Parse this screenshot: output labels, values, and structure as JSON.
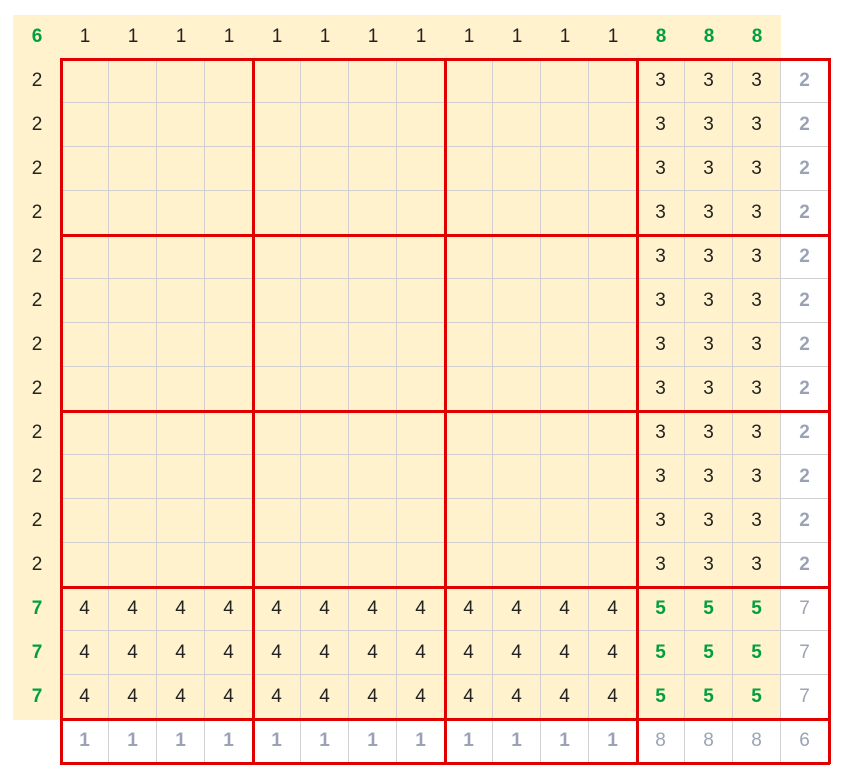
{
  "colors": {
    "cell_fill": "#fff2cc",
    "grid_line": "#d0d0d0",
    "block_border": "#e00000",
    "text_dark": "#222222",
    "text_green": "#00a040",
    "text_gray": "#9aa3b5"
  },
  "top_row": {
    "corner": "6",
    "cols": [
      "1",
      "1",
      "1",
      "1",
      "1",
      "1",
      "1",
      "1",
      "1",
      "1",
      "1",
      "1",
      "8",
      "8",
      "8"
    ]
  },
  "left_col": [
    "2",
    "2",
    "2",
    "2",
    "2",
    "2",
    "2",
    "2",
    "2",
    "2",
    "2",
    "2",
    "7",
    "7",
    "7"
  ],
  "grid": [
    [
      "",
      "",
      "",
      "",
      "",
      "",
      "",
      "",
      "",
      "",
      "",
      "",
      "3",
      "3",
      "3",
      "2"
    ],
    [
      "",
      "",
      "",
      "",
      "",
      "",
      "",
      "",
      "",
      "",
      "",
      "",
      "3",
      "3",
      "3",
      "2"
    ],
    [
      "",
      "",
      "",
      "",
      "",
      "",
      "",
      "",
      "",
      "",
      "",
      "",
      "3",
      "3",
      "3",
      "2"
    ],
    [
      "",
      "",
      "",
      "",
      "",
      "",
      "",
      "",
      "",
      "",
      "",
      "",
      "3",
      "3",
      "3",
      "2"
    ],
    [
      "",
      "",
      "",
      "",
      "",
      "",
      "",
      "",
      "",
      "",
      "",
      "",
      "3",
      "3",
      "3",
      "2"
    ],
    [
      "",
      "",
      "",
      "",
      "",
      "",
      "",
      "",
      "",
      "",
      "",
      "",
      "3",
      "3",
      "3",
      "2"
    ],
    [
      "",
      "",
      "",
      "",
      "",
      "",
      "",
      "",
      "",
      "",
      "",
      "",
      "3",
      "3",
      "3",
      "2"
    ],
    [
      "",
      "",
      "",
      "",
      "",
      "",
      "",
      "",
      "",
      "",
      "",
      "",
      "3",
      "3",
      "3",
      "2"
    ],
    [
      "",
      "",
      "",
      "",
      "",
      "",
      "",
      "",
      "",
      "",
      "",
      "",
      "3",
      "3",
      "3",
      "2"
    ],
    [
      "",
      "",
      "",
      "",
      "",
      "",
      "",
      "",
      "",
      "",
      "",
      "",
      "3",
      "3",
      "3",
      "2"
    ],
    [
      "",
      "",
      "",
      "",
      "",
      "",
      "",
      "",
      "",
      "",
      "",
      "",
      "3",
      "3",
      "3",
      "2"
    ],
    [
      "",
      "",
      "",
      "",
      "",
      "",
      "",
      "",
      "",
      "",
      "",
      "",
      "3",
      "3",
      "3",
      "2"
    ],
    [
      "4",
      "4",
      "4",
      "4",
      "4",
      "4",
      "4",
      "4",
      "4",
      "4",
      "4",
      "4",
      "5",
      "5",
      "5",
      "7"
    ],
    [
      "4",
      "4",
      "4",
      "4",
      "4",
      "4",
      "4",
      "4",
      "4",
      "4",
      "4",
      "4",
      "5",
      "5",
      "5",
      "7"
    ],
    [
      "4",
      "4",
      "4",
      "4",
      "4",
      "4",
      "4",
      "4",
      "4",
      "4",
      "4",
      "4",
      "5",
      "5",
      "5",
      "7"
    ],
    [
      "1",
      "1",
      "1",
      "1",
      "1",
      "1",
      "1",
      "1",
      "1",
      "1",
      "1",
      "1",
      "8",
      "8",
      "8",
      "6"
    ]
  ]
}
